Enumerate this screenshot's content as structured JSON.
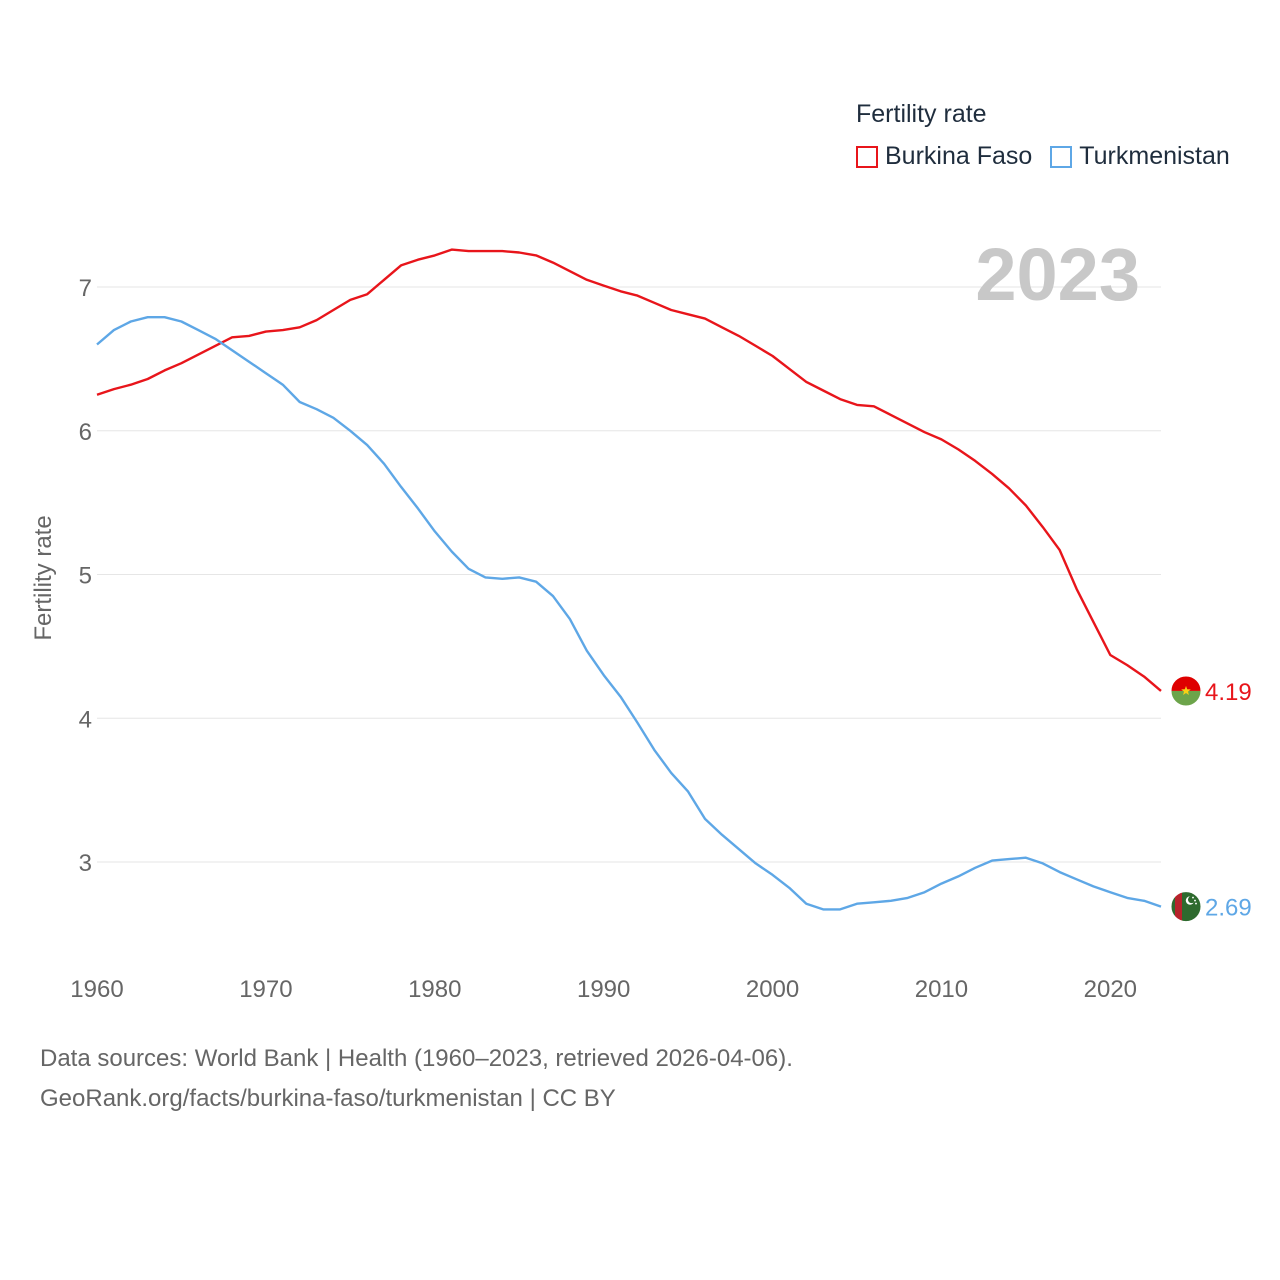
{
  "legend": {
    "title": "Fertility rate",
    "items": [
      {
        "label": "Burkina Faso",
        "color": "#e8151b"
      },
      {
        "label": "Turkmenistan",
        "color": "#5ea7e6"
      }
    ]
  },
  "year_label": "2023",
  "source": {
    "line1": "Data sources: World Bank | Health (1960–2023, retrieved 2026-04-06).",
    "line2": "GeoRank.org/facts/burkina-faso/turkmenistan | CC BY"
  },
  "chart_data": {
    "type": "line",
    "title": "Fertility rate",
    "xlabel": "",
    "ylabel": "Fertility rate",
    "xlim": [
      1960,
      2023
    ],
    "ylim": [
      2.3,
      7.45
    ],
    "x_ticks": [
      1960,
      1970,
      1980,
      1990,
      2000,
      2010,
      2020
    ],
    "y_ticks": [
      3,
      4,
      5,
      6,
      7
    ],
    "grid": true,
    "legend_position": "top-right",
    "x": [
      1960,
      1961,
      1962,
      1963,
      1964,
      1965,
      1966,
      1967,
      1968,
      1969,
      1970,
      1971,
      1972,
      1973,
      1974,
      1975,
      1976,
      1977,
      1978,
      1979,
      1980,
      1981,
      1982,
      1983,
      1984,
      1985,
      1986,
      1987,
      1988,
      1989,
      1990,
      1991,
      1992,
      1993,
      1994,
      1995,
      1996,
      1997,
      1998,
      1999,
      2000,
      2001,
      2002,
      2003,
      2004,
      2005,
      2006,
      2007,
      2008,
      2009,
      2010,
      2011,
      2012,
      2013,
      2014,
      2015,
      2016,
      2017,
      2018,
      2019,
      2020,
      2021,
      2022,
      2023
    ],
    "series": [
      {
        "name": "Burkina Faso",
        "color": "#e8151b",
        "end_label": "4.19",
        "values": [
          6.25,
          6.29,
          6.32,
          6.36,
          6.42,
          6.47,
          6.53,
          6.59,
          6.65,
          6.66,
          6.69,
          6.7,
          6.72,
          6.77,
          6.84,
          6.91,
          6.95,
          7.05,
          7.15,
          7.19,
          7.22,
          7.26,
          7.25,
          7.25,
          7.25,
          7.24,
          7.22,
          7.17,
          7.11,
          7.05,
          7.01,
          6.97,
          6.94,
          6.89,
          6.84,
          6.81,
          6.78,
          6.72,
          6.66,
          6.59,
          6.52,
          6.43,
          6.34,
          6.28,
          6.22,
          6.18,
          6.17,
          6.11,
          6.05,
          5.99,
          5.94,
          5.87,
          5.79,
          5.7,
          5.6,
          5.48,
          5.33,
          5.17,
          4.9,
          4.67,
          4.44,
          4.37,
          4.29,
          4.19
        ]
      },
      {
        "name": "Turkmenistan",
        "color": "#5ea7e6",
        "end_label": "2.69",
        "values": [
          6.6,
          6.7,
          6.76,
          6.79,
          6.79,
          6.76,
          6.7,
          6.64,
          6.56,
          6.48,
          6.4,
          6.32,
          6.2,
          6.15,
          6.09,
          6.0,
          5.9,
          5.77,
          5.61,
          5.46,
          5.3,
          5.16,
          5.04,
          4.98,
          4.97,
          4.98,
          4.95,
          4.85,
          4.69,
          4.47,
          4.3,
          4.15,
          3.97,
          3.78,
          3.62,
          3.49,
          3.3,
          3.19,
          3.09,
          2.99,
          2.91,
          2.82,
          2.71,
          2.67,
          2.67,
          2.71,
          2.72,
          2.73,
          2.75,
          2.79,
          2.85,
          2.9,
          2.96,
          3.01,
          3.02,
          3.03,
          2.99,
          2.93,
          2.88,
          2.83,
          2.79,
          2.75,
          2.73,
          2.69
        ]
      }
    ]
  }
}
